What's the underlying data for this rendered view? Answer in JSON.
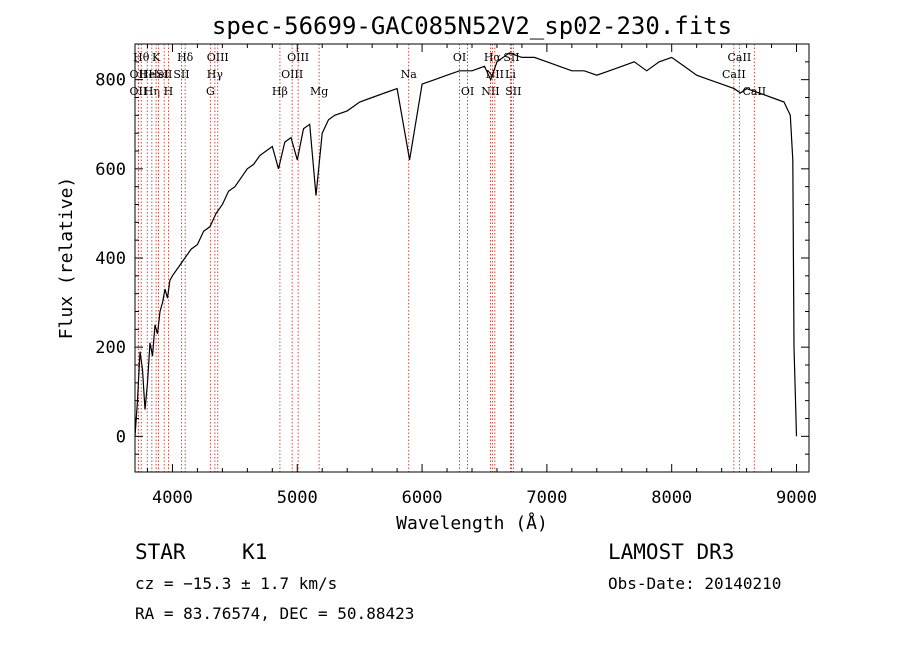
{
  "chart_data": {
    "type": "line",
    "title": "spec-56699-GAC085N52V2_sp02-230.fits",
    "xlabel": "Wavelength (Å)",
    "ylabel": "Flux (relative)",
    "xlim": [
      3700,
      9100
    ],
    "ylim": [
      -80,
      880
    ],
    "xticks": [
      4000,
      5000,
      6000,
      7000,
      8000,
      9000
    ],
    "yticks": [
      0,
      200,
      400,
      600,
      800
    ],
    "grid": false,
    "series": [
      {
        "name": "spectrum",
        "x": [
          3700,
          3720,
          3740,
          3760,
          3780,
          3800,
          3820,
          3840,
          3860,
          3880,
          3900,
          3920,
          3940,
          3960,
          3980,
          4000,
          4050,
          4100,
          4150,
          4200,
          4250,
          4300,
          4350,
          4400,
          4450,
          4500,
          4550,
          4600,
          4650,
          4700,
          4750,
          4800,
          4850,
          4900,
          4950,
          5000,
          5050,
          5100,
          5150,
          5200,
          5250,
          5300,
          5400,
          5500,
          5600,
          5700,
          5800,
          5900,
          6000,
          6100,
          6200,
          6300,
          6400,
          6500,
          6550,
          6600,
          6700,
          6800,
          6900,
          7000,
          7100,
          7200,
          7300,
          7400,
          7500,
          7600,
          7700,
          7800,
          7900,
          8000,
          8100,
          8200,
          8300,
          8400,
          8500,
          8550,
          8600,
          8700,
          8800,
          8900,
          8950,
          8970,
          8980,
          9000
        ],
        "y": [
          0,
          80,
          190,
          150,
          60,
          120,
          210,
          180,
          250,
          230,
          280,
          300,
          330,
          310,
          350,
          360,
          380,
          400,
          420,
          430,
          460,
          470,
          500,
          520,
          550,
          560,
          580,
          600,
          610,
          630,
          640,
          650,
          600,
          660,
          670,
          620,
          690,
          700,
          540,
          680,
          710,
          720,
          730,
          750,
          760,
          770,
          780,
          620,
          790,
          800,
          810,
          820,
          820,
          830,
          800,
          840,
          860,
          850,
          850,
          840,
          830,
          820,
          820,
          810,
          820,
          830,
          840,
          820,
          840,
          850,
          830,
          810,
          800,
          790,
          780,
          770,
          780,
          770,
          760,
          750,
          720,
          620,
          200,
          0
        ]
      }
    ],
    "line_markers": [
      {
        "wavelength": 3750,
        "label": "Hθ",
        "row": 1
      },
      {
        "wavelength": 3727,
        "label": "OII",
        "row": 2
      },
      {
        "wavelength": 3727,
        "label": "OII",
        "row": 3
      },
      {
        "wavelength": 3798,
        "label": "He",
        "row": 2
      },
      {
        "wavelength": 3835,
        "label": "Hη",
        "row": 3
      },
      {
        "wavelength": 3869,
        "label": "K",
        "row": 1
      },
      {
        "wavelength": 3889,
        "label": "HeI",
        "row": 2
      },
      {
        "wavelength": 3934,
        "label": "SII",
        "row": 2
      },
      {
        "wavelength": 3968,
        "label": "H",
        "row": 3
      },
      {
        "wavelength": 4102,
        "label": "Hδ",
        "row": 1
      },
      {
        "wavelength": 4072,
        "label": "SII",
        "row": 2
      },
      {
        "wavelength": 4340,
        "label": "Hγ",
        "row": 2
      },
      {
        "wavelength": 4363,
        "label": "OIII",
        "row": 1
      },
      {
        "wavelength": 4304,
        "label": "G",
        "row": 3
      },
      {
        "wavelength": 4861,
        "label": "Hβ",
        "row": 3
      },
      {
        "wavelength": 4959,
        "label": "OIII",
        "row": 2
      },
      {
        "wavelength": 5007,
        "label": "OIII",
        "row": 1
      },
      {
        "wavelength": 5175,
        "label": "Mg",
        "row": 3
      },
      {
        "wavelength": 5893,
        "label": "Na",
        "row": 2
      },
      {
        "wavelength": 6300,
        "label": "OI",
        "row": 1
      },
      {
        "wavelength": 6364,
        "label": "OI",
        "row": 3
      },
      {
        "wavelength": 6548,
        "label": "NII",
        "row": 3
      },
      {
        "wavelength": 6563,
        "label": "Hα",
        "row": 1
      },
      {
        "wavelength": 6583,
        "label": "NII",
        "row": 2
      },
      {
        "wavelength": 6708,
        "label": "Li",
        "row": 2
      },
      {
        "wavelength": 6716,
        "label": "SII",
        "row": 1
      },
      {
        "wavelength": 6731,
        "label": "SII",
        "row": 3
      },
      {
        "wavelength": 8498,
        "label": "CaII",
        "row": 2
      },
      {
        "wavelength": 8542,
        "label": "CaII",
        "row": 1
      },
      {
        "wavelength": 8662,
        "label": "CaII",
        "row": 3
      }
    ]
  },
  "info": {
    "object_class": "STAR",
    "subclass": "K1",
    "redshift": "cz = −15.3 ± 1.7 km/s",
    "coords": "RA =  83.76574, DEC =  50.88423",
    "survey": "LAMOST DR3",
    "obs_date": "Obs-Date: 20140210"
  }
}
